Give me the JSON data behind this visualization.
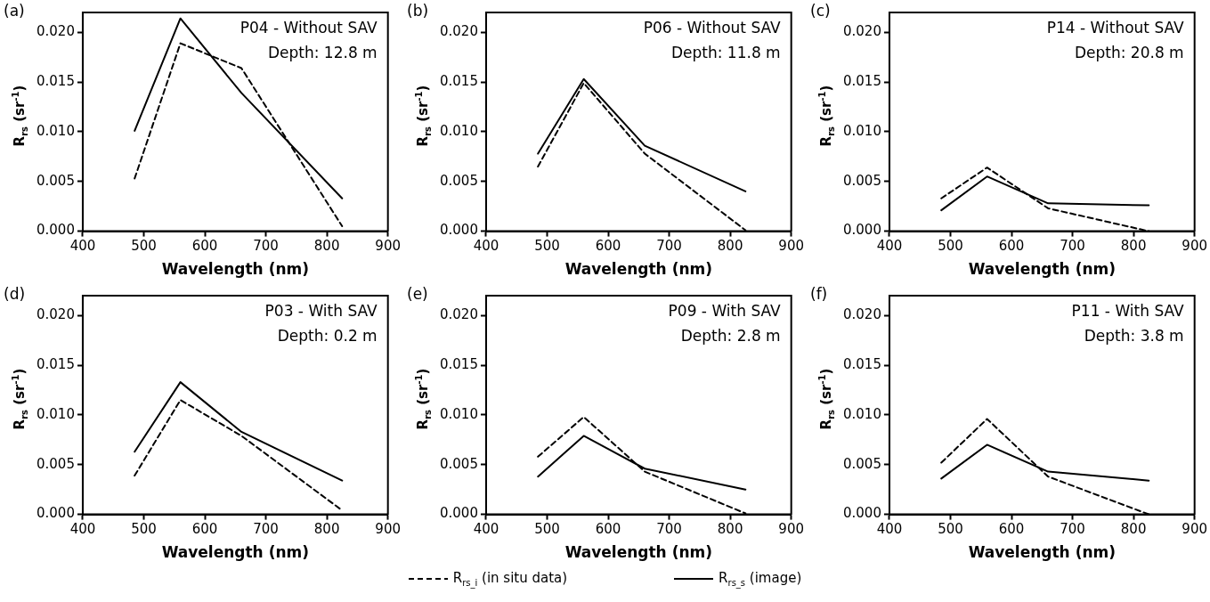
{
  "chart_data": [
    {
      "type": "line",
      "title": "(a)",
      "xlabel": "Wavelength (nm)",
      "ylabel": "R$_{rs}$ (sr$^{-1}$)",
      "annotations": [
        "P04 - Without SAV",
        "Depth: 12.8 m"
      ],
      "x": [
        485,
        560,
        660,
        825
      ],
      "series": [
        {
          "name": "R$_{rs_i}$ (in situ data)",
          "color": "#000000",
          "line_style": "dashed",
          "values": [
            0.0053,
            0.0189,
            0.0164,
            0.0005
          ]
        },
        {
          "name": "R$_{rs_s}$ (image)",
          "color": "#000000",
          "line_style": "solid",
          "values": [
            0.0101,
            0.0214,
            0.0139,
            0.0033
          ]
        }
      ],
      "xlim": [
        400,
        900
      ],
      "xticks": [
        400,
        500,
        600,
        700,
        800,
        900
      ],
      "ylim": [
        0,
        0.022
      ],
      "yticks": [
        {
          "value": 0,
          "label": "0.000"
        },
        {
          "value": 0.005,
          "label": "0.005"
        },
        {
          "value": 0.01,
          "label": "0.010"
        },
        {
          "value": 0.015,
          "label": "0.015"
        },
        {
          "value": 0.02,
          "label": "0.020"
        }
      ],
      "grid": false,
      "legend": "bottom",
      "marker": "none"
    },
    {
      "type": "line",
      "title": "(b)",
      "xlabel": "Wavelength (nm)",
      "ylabel": "R$_{rs}$ (sr$^{-1}$)",
      "annotations": [
        "P06 - Without SAV",
        "Depth: 11.8 m"
      ],
      "x": [
        485,
        560,
        660,
        825
      ],
      "series": [
        {
          "color": "#000000",
          "line_style": "dashed",
          "values": [
            0.0065,
            0.0149,
            0.0078,
            0.0001
          ]
        },
        {
          "color": "#000000",
          "line_style": "solid",
          "values": [
            0.0078,
            0.0153,
            0.0086,
            0.004
          ]
        }
      ],
      "xlim": [
        400,
        900
      ],
      "xticks": [
        400,
        500,
        600,
        700,
        800,
        900
      ],
      "ylim": [
        0,
        0.022
      ],
      "yticks": [
        {
          "value": 0,
          "label": "0.000"
        },
        {
          "value": 0.005,
          "label": "0.005"
        },
        {
          "value": 0.01,
          "label": "0.010"
        },
        {
          "value": 0.015,
          "label": "0.015"
        },
        {
          "value": 0.02,
          "label": "0.020"
        }
      ],
      "grid": false,
      "marker": "none"
    },
    {
      "type": "line",
      "title": "(c)",
      "xlabel": "Wavelength (nm)",
      "ylabel": "R$_{rs}$ (sr$^{-1}$)",
      "annotations": [
        "P14 - Without SAV",
        "Depth: 20.8 m"
      ],
      "x": [
        485,
        560,
        660,
        825
      ],
      "series": [
        {
          "color": "#000000",
          "line_style": "dashed",
          "values": [
            0.0033,
            0.0064,
            0.0023,
            0.0
          ]
        },
        {
          "color": "#000000",
          "line_style": "solid",
          "values": [
            0.0021,
            0.0055,
            0.0028,
            0.0026
          ]
        }
      ],
      "xlim": [
        400,
        900
      ],
      "xticks": [
        400,
        500,
        600,
        700,
        800,
        900
      ],
      "ylim": [
        0,
        0.022
      ],
      "yticks": [
        {
          "value": 0,
          "label": "0.000"
        },
        {
          "value": 0.005,
          "label": "0.005"
        },
        {
          "value": 0.01,
          "label": "0.010"
        },
        {
          "value": 0.015,
          "label": "0.015"
        },
        {
          "value": 0.02,
          "label": "0.020"
        }
      ],
      "grid": false,
      "marker": "none"
    },
    {
      "type": "line",
      "title": "(d)",
      "xlabel": "Wavelength (nm)",
      "ylabel": "R$_{rs}$ (sr$^{-1}$)",
      "annotations": [
        "P03 - With SAV",
        "Depth: 0.2 m"
      ],
      "x": [
        485,
        560,
        660,
        825
      ],
      "series": [
        {
          "color": "#000000",
          "line_style": "dashed",
          "values": [
            0.0039,
            0.0115,
            0.0079,
            0.0004
          ]
        },
        {
          "color": "#000000",
          "line_style": "solid",
          "values": [
            0.0063,
            0.0133,
            0.0083,
            0.0034
          ]
        }
      ],
      "xlim": [
        400,
        900
      ],
      "xticks": [
        400,
        500,
        600,
        700,
        800,
        900
      ],
      "ylim": [
        0,
        0.022
      ],
      "yticks": [
        {
          "value": 0,
          "label": "0.000"
        },
        {
          "value": 0.005,
          "label": "0.005"
        },
        {
          "value": 0.01,
          "label": "0.010"
        },
        {
          "value": 0.015,
          "label": "0.015"
        },
        {
          "value": 0.02,
          "label": "0.020"
        }
      ],
      "grid": false,
      "marker": "none"
    },
    {
      "type": "line",
      "title": "(e)",
      "xlabel": "Wavelength (nm)",
      "ylabel": "R$_{rs}$ (sr$^{-1}$)",
      "annotations": [
        "P09 - With SAV",
        "Depth: 2.8 m"
      ],
      "x": [
        485,
        560,
        660,
        825
      ],
      "series": [
        {
          "color": "#000000",
          "line_style": "dashed",
          "values": [
            0.0058,
            0.0098,
            0.0043,
            0.0001
          ]
        },
        {
          "color": "#000000",
          "line_style": "solid",
          "values": [
            0.0038,
            0.0079,
            0.0046,
            0.0025
          ]
        }
      ],
      "xlim": [
        400,
        900
      ],
      "xticks": [
        400,
        500,
        600,
        700,
        800,
        900
      ],
      "ylim": [
        0,
        0.022
      ],
      "yticks": [
        {
          "value": 0,
          "label": "0.000"
        },
        {
          "value": 0.005,
          "label": "0.005"
        },
        {
          "value": 0.01,
          "label": "0.010"
        },
        {
          "value": 0.015,
          "label": "0.015"
        },
        {
          "value": 0.02,
          "label": "0.020"
        }
      ],
      "grid": false,
      "marker": "none"
    },
    {
      "type": "line",
      "title": "(f)",
      "xlabel": "Wavelength (nm)",
      "ylabel": "R$_{rs}$ (sr$^{-1}$)",
      "annotations": [
        "P11 - With SAV",
        "Depth: 3.8 m"
      ],
      "x": [
        485,
        560,
        660,
        825
      ],
      "series": [
        {
          "color": "#000000",
          "line_style": "dashed",
          "values": [
            0.0052,
            0.0096,
            0.0038,
            0.0
          ]
        },
        {
          "color": "#000000",
          "line_style": "solid",
          "values": [
            0.0036,
            0.007,
            0.0043,
            0.0034
          ]
        }
      ],
      "xlim": [
        400,
        900
      ],
      "xticks": [
        400,
        500,
        600,
        700,
        800,
        900
      ],
      "ylim": [
        0,
        0.022
      ],
      "yticks": [
        {
          "value": 0,
          "label": "0.000"
        },
        {
          "value": 0.005,
          "label": "0.005"
        },
        {
          "value": 0.01,
          "label": "0.010"
        },
        {
          "value": 0.015,
          "label": "0.015"
        },
        {
          "value": 0.02,
          "label": "0.020"
        }
      ],
      "grid": false,
      "marker": "none"
    }
  ]
}
